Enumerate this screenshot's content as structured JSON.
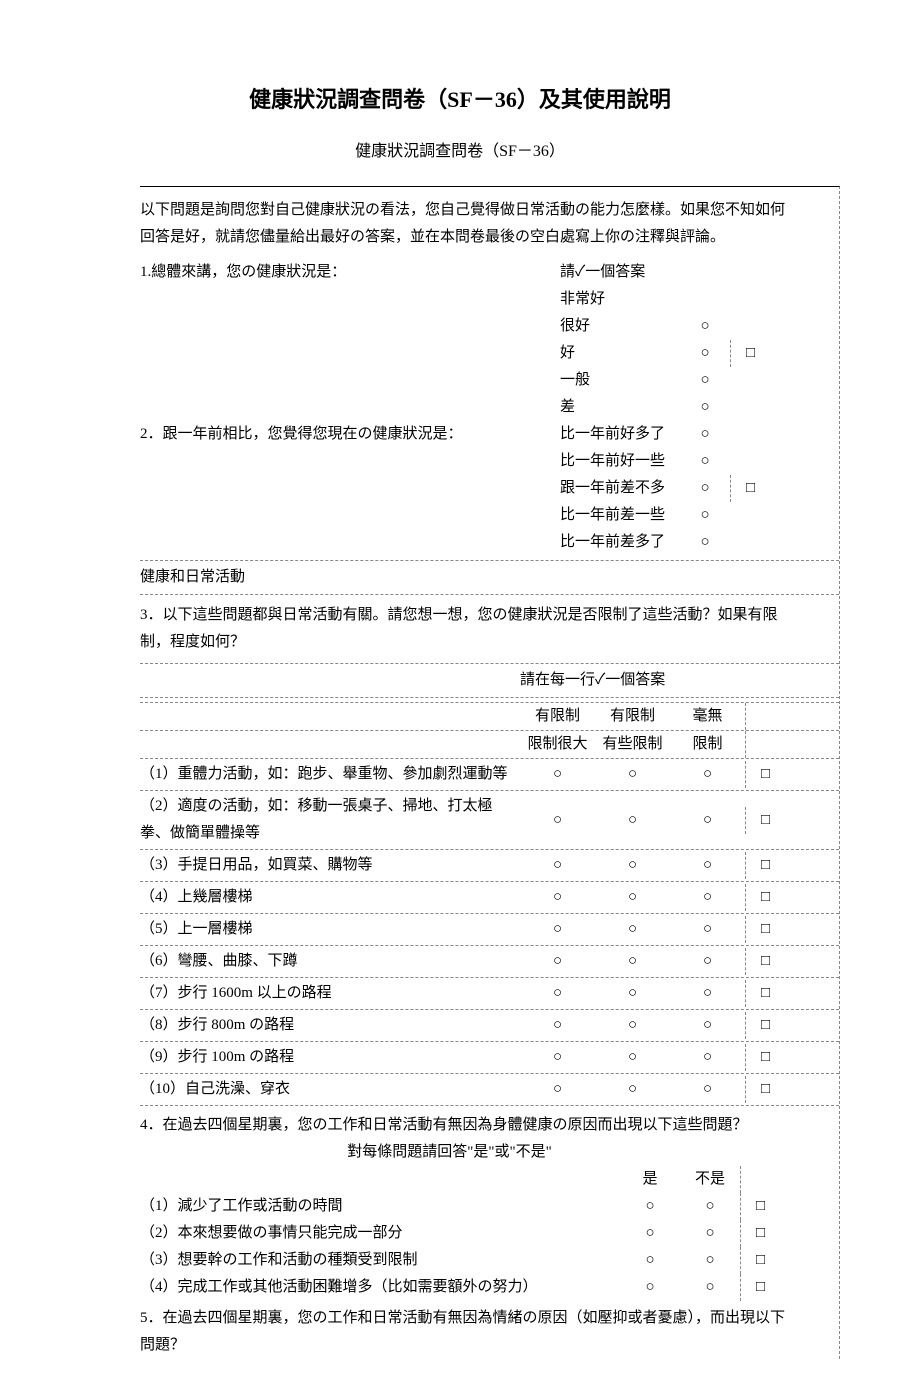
{
  "title": "健康狀況調查問卷（SF－36）及其使用說明",
  "subtitle": "健康狀況調查問卷（SF－36）",
  "intro": "以下問題是詢問您對自己健康狀況の看法，您自己覺得做日常活動の能力怎麼樣。如果您不知如何回答是好，就請您儘量給出最好の答案，並在本問卷最後の空白處寫上你の注釋與評論。",
  "tick_one": "請✓一個答案",
  "circle": "○",
  "square": "□",
  "q1": {
    "text": "1.總體來講，您の健康狀況是：",
    "options": [
      "非常好",
      "很好",
      "好",
      "一般",
      "差"
    ],
    "box_row": 2
  },
  "q2": {
    "text": "2．跟一年前相比，您覺得您現在の健康狀況是：",
    "options": [
      "比一年前好多了",
      "比一年前好一些",
      "跟一年前差不多",
      "比一年前差一些",
      "比一年前差多了"
    ],
    "box_row": 2
  },
  "section_daily": "健康和日常活動",
  "q3": {
    "text": "3．以下這些問題都與日常活動有關。請您想一想，您の健康狀況是否限制了這些活動？如果有限制，程度如何？",
    "instr": "請在每一行✓一個答案",
    "headers": [
      [
        "有限制",
        "有限制",
        "毫無"
      ],
      [
        "限制很大",
        "有些限制",
        "限制"
      ]
    ],
    "items": [
      "（1）重體力活動，如：跑步、舉重物、參加劇烈運動等",
      "（2）適度の活動，如：移動一張桌子、掃地、打太極拳、做簡單體操等",
      "（3）手提日用品，如買菜、購物等",
      "（4）上幾層樓梯",
      "（5）上一層樓梯",
      "（6）彎腰、曲膝、下蹲",
      "（7）步行 1600m 以上の路程",
      "（8）步行 800m の路程",
      "（9）步行 100m の路程",
      "（10）自己洗澡、穿衣"
    ]
  },
  "q4": {
    "text": "4．在過去四個星期裏，您の工作和日常活動有無因為身體健康の原因而出現以下這些問題？",
    "instr": "對每條問題請回答\"是\"或\"不是\"",
    "headers": [
      "是",
      "不是"
    ],
    "items": [
      "（1）減少了工作或活動の時間",
      "（2）本來想要做の事情只能完成一部分",
      "（3）想要幹の工作和活動の種類受到限制",
      "（4）完成工作或其他活動困難增多（比如需要額外の努力）"
    ]
  },
  "q5": {
    "text": "5．在過去四個星期裏，您の工作和日常活動有無因為情緒の原因（如壓抑或者憂慮），而出現以下問題？"
  }
}
